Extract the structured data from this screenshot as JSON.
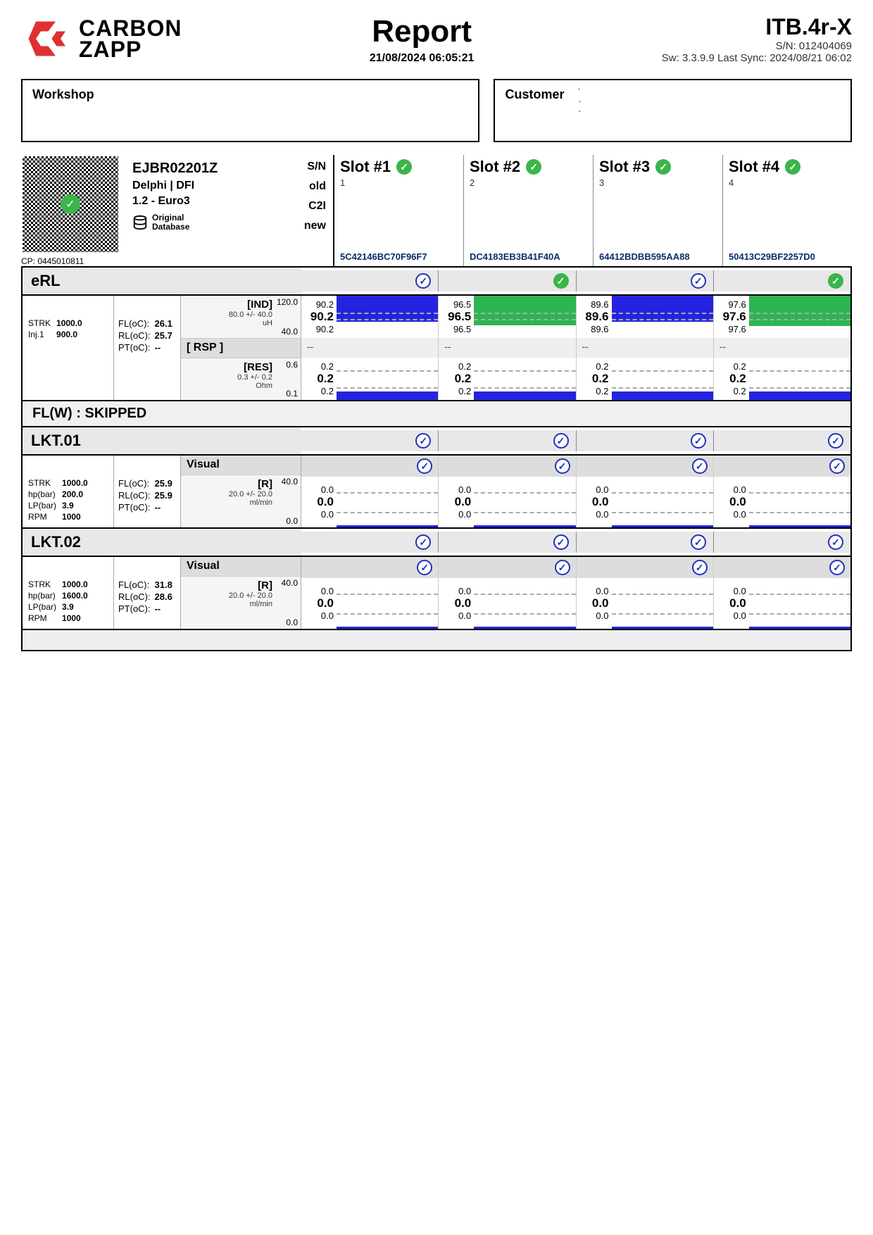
{
  "header": {
    "logo_top": "CARBON",
    "logo_bottom": "ZAPP",
    "report_title": "Report",
    "report_date": "21/08/2024 06:05:21",
    "device_model": "ITB.4r-X",
    "sn": "S/N: 012404069",
    "sw": "Sw: 3.3.9.9 Last Sync: 2024/08/21 06:02"
  },
  "boxes": {
    "workshop": "Workshop",
    "customer": "Customer",
    "cust_l1": "'",
    "cust_l2": "-",
    "cust_l3": "-"
  },
  "part": {
    "number": "EJBR02201Z",
    "brand": "Delphi | DFI",
    "spec": "1.2 - Euro3",
    "db": "Original\nDatabase",
    "cp": "CP: 0445010811",
    "sn_labels": [
      "S/N",
      "old",
      "C2I",
      "new"
    ]
  },
  "slots": [
    {
      "title": "Slot #1",
      "num": "1",
      "code": "5C42146BC70F96F7"
    },
    {
      "title": "Slot #2",
      "num": "2",
      "code": "DC4183EB3B41F40A"
    },
    {
      "title": "Slot #3",
      "num": "3",
      "code": "64412BDBB595AA88"
    },
    {
      "title": "Slot #4",
      "num": "4",
      "code": "50413C29BF2257D0"
    }
  ],
  "erl": {
    "label": "eRL",
    "status": [
      "blue",
      "green",
      "blue",
      "green"
    ],
    "strk": [
      [
        "STRK",
        "1000.0"
      ],
      [
        "Inj.1",
        "900.0"
      ]
    ],
    "temps": [
      [
        "FL(oC):",
        "26.1"
      ],
      [
        "RL(oC):",
        "25.7"
      ],
      [
        "PT(oC):",
        "--"
      ]
    ],
    "ind": {
      "name": "[IND]",
      "spec": "80.0 +/- 40.0",
      "unit": "uH",
      "max": "120.0",
      "min": "40.0"
    },
    "rsp": {
      "name": "[ RSP ]"
    },
    "res": {
      "name": "[RES]",
      "spec": "0.3 +/- 0.2",
      "unit": "Ohm",
      "max": "0.6",
      "min": "0.1"
    },
    "ind_vals": [
      {
        "hi": "90.2",
        "main": "90.2",
        "lo": "90.2",
        "color": "blue",
        "pct": 62
      },
      {
        "hi": "96.5",
        "main": "96.5",
        "lo": "96.5",
        "color": "green",
        "pct": 70
      },
      {
        "hi": "89.6",
        "main": "89.6",
        "lo": "89.6",
        "color": "blue",
        "pct": 62
      },
      {
        "hi": "97.6",
        "main": "97.6",
        "lo": "97.6",
        "color": "green",
        "pct": 72
      }
    ],
    "rsp_vals": [
      "--",
      "--",
      "--",
      "--"
    ],
    "res_vals": [
      {
        "hi": "0.2",
        "main": "0.2",
        "lo": "0.2",
        "color": "blue",
        "pct": 20
      },
      {
        "hi": "0.2",
        "main": "0.2",
        "lo": "0.2",
        "color": "blue",
        "pct": 20
      },
      {
        "hi": "0.2",
        "main": "0.2",
        "lo": "0.2",
        "color": "blue",
        "pct": 20
      },
      {
        "hi": "0.2",
        "main": "0.2",
        "lo": "0.2",
        "color": "blue",
        "pct": 20
      }
    ]
  },
  "skipped": "FL(W) : SKIPPED",
  "lkt01": {
    "label": "LKT.01",
    "visual": "Visual",
    "strk": [
      [
        "STRK",
        "1000.0"
      ],
      [
        "hp(bar)",
        "200.0"
      ],
      [
        "LP(bar)",
        "3.9"
      ],
      [
        "RPM",
        "1000"
      ]
    ],
    "temps": [
      [
        "FL(oC):",
        "25.9"
      ],
      [
        "RL(oC):",
        "25.9"
      ],
      [
        "PT(oC):",
        "--"
      ]
    ],
    "r": {
      "name": "[R]",
      "spec": "20.0 +/- 20.0",
      "unit": "ml/min",
      "max": "40.0",
      "min": "0.0"
    },
    "vals": [
      {
        "hi": "0.0",
        "main": "0.0",
        "lo": "0.0"
      },
      {
        "hi": "0.0",
        "main": "0.0",
        "lo": "0.0"
      },
      {
        "hi": "0.0",
        "main": "0.0",
        "lo": "0.0"
      },
      {
        "hi": "0.0",
        "main": "0.0",
        "lo": "0.0"
      }
    ]
  },
  "lkt02": {
    "label": "LKT.02",
    "visual": "Visual",
    "strk": [
      [
        "STRK",
        "1000.0"
      ],
      [
        "hp(bar)",
        "1600.0"
      ],
      [
        "LP(bar)",
        "3.9"
      ],
      [
        "RPM",
        "1000"
      ]
    ],
    "temps": [
      [
        "FL(oC):",
        "31.8"
      ],
      [
        "RL(oC):",
        "28.6"
      ],
      [
        "PT(oC):",
        "--"
      ]
    ],
    "r": {
      "name": "[R]",
      "spec": "20.0 +/- 20.0",
      "unit": "ml/min",
      "max": "40.0",
      "min": "0.0"
    },
    "vals": [
      {
        "hi": "0.0",
        "main": "0.0",
        "lo": "0.0"
      },
      {
        "hi": "0.0",
        "main": "0.0",
        "lo": "0.0"
      },
      {
        "hi": "0.0",
        "main": "0.0",
        "lo": "0.0"
      },
      {
        "hi": "0.0",
        "main": "0.0",
        "lo": "0.0"
      }
    ]
  },
  "colors": {
    "blue": "#2424e0",
    "green": "#2db552"
  }
}
